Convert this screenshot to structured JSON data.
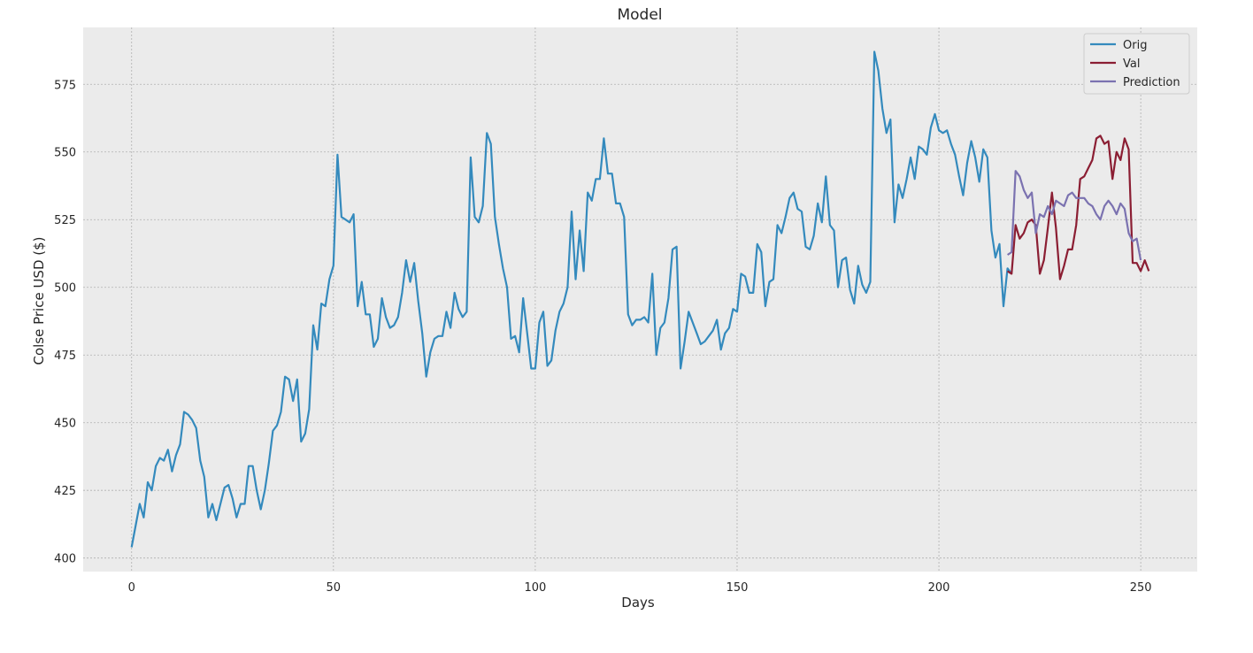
{
  "chart_data": {
    "type": "line",
    "title": "Model",
    "xlabel": "Days",
    "ylabel": "Colse Price USD ($)",
    "xlim": [
      -12,
      264
    ],
    "ylim": [
      395,
      596
    ],
    "xticks": [
      0,
      50,
      100,
      150,
      200,
      250
    ],
    "xtick_labels": [
      "0",
      "50",
      "100",
      "150",
      "200",
      "250"
    ],
    "yticks": [
      400,
      425,
      450,
      475,
      500,
      525,
      550,
      575
    ],
    "ytick_labels": [
      "400",
      "425",
      "450",
      "475",
      "500",
      "525",
      "550",
      "575"
    ],
    "grid": true,
    "background": "#ebebeb",
    "grid_color": "#b0b0b0",
    "legend_position": "top-right",
    "series": [
      {
        "name": "Orig",
        "color": "#348abd",
        "x_start": 0,
        "values": [
          404,
          412,
          420,
          415,
          428,
          425,
          434,
          437,
          436,
          440,
          432,
          438,
          442,
          454,
          453,
          451,
          448,
          436,
          430,
          415,
          420,
          414,
          420,
          426,
          427,
          422,
          415,
          420,
          420,
          434,
          434,
          425,
          418,
          425,
          435,
          447,
          449,
          454,
          467,
          466,
          458,
          466,
          443,
          446,
          455,
          486,
          477,
          494,
          493,
          503,
          508,
          549,
          526,
          525,
          524,
          527,
          493,
          502,
          490,
          490,
          478,
          481,
          496,
          489,
          485,
          486,
          489,
          498,
          510,
          502,
          509,
          495,
          483,
          467,
          476,
          481,
          482,
          482,
          491,
          485,
          498,
          492,
          489,
          491,
          548,
          526,
          524,
          530,
          557,
          553,
          526,
          516,
          507,
          500,
          481,
          482,
          476,
          496,
          483,
          470,
          470,
          487,
          491,
          471,
          473,
          484,
          491,
          494,
          500,
          528,
          503,
          521,
          506,
          535,
          532,
          540,
          540,
          555,
          542,
          542,
          531,
          531,
          526,
          490,
          486,
          488,
          488,
          489,
          487,
          505,
          475,
          485,
          487,
          496,
          514,
          515,
          470,
          480,
          491,
          487,
          483,
          479,
          480,
          482,
          484,
          488,
          477,
          483,
          485,
          492,
          491,
          505,
          504,
          498,
          498,
          516,
          513,
          493,
          502,
          503,
          523,
          520,
          526,
          533,
          535,
          529,
          528,
          515,
          514,
          519,
          531,
          524,
          541,
          523,
          521,
          500,
          510,
          511,
          499,
          494,
          508,
          501,
          498,
          502,
          587,
          580,
          566,
          557,
          562,
          524,
          538,
          533,
          540,
          548,
          540,
          552,
          551,
          549,
          559,
          564,
          558,
          557,
          558,
          553,
          549,
          541,
          534,
          546,
          554,
          548,
          539,
          551,
          548,
          521,
          511,
          516,
          493,
          507,
          505
        ]
      },
      {
        "name": "Val",
        "color": "#8b1e33",
        "x_start": 217,
        "values": [
          506,
          505,
          523,
          518,
          520,
          524,
          525,
          523,
          505,
          510,
          522,
          535,
          522,
          503,
          508,
          514,
          514,
          523,
          540,
          541,
          544,
          547,
          555,
          556,
          553,
          554,
          540,
          550,
          547,
          555,
          551,
          509,
          509,
          506,
          510,
          506
        ]
      },
      {
        "name": "Prediction",
        "color": "#7b72b0",
        "x_start": 217,
        "values": [
          512,
          513,
          543,
          541,
          536,
          533,
          535,
          520,
          527,
          526,
          530,
          527,
          532,
          531,
          530,
          534,
          535,
          533,
          533,
          533,
          531,
          530,
          527,
          525,
          530,
          532,
          530,
          527,
          531,
          529,
          520,
          517,
          518,
          510
        ]
      }
    ]
  }
}
